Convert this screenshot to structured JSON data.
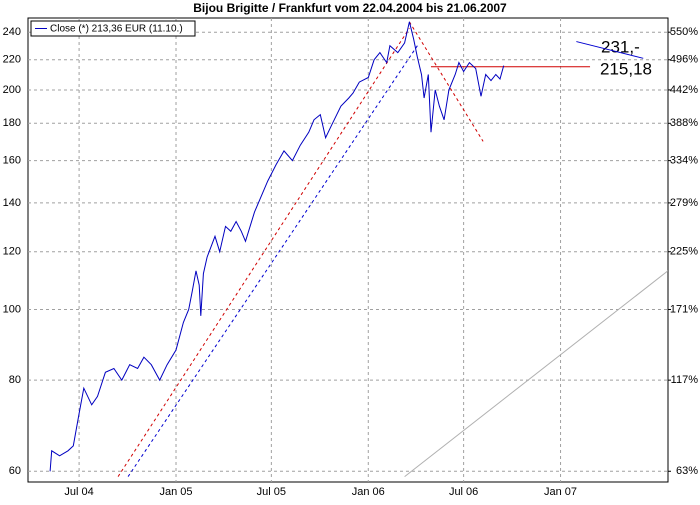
{
  "chart_data": {
    "type": "line",
    "title": "Bijou Brigitte / Frankfurt vom 22.04.2004 bis 21.06.2007",
    "log_scale": true,
    "grid": true,
    "legend": "upper left",
    "xlim": [
      "2004-03-26",
      "2007-07-24"
    ],
    "xticks": [
      {
        "value": "2004-07-01",
        "label": "Jul 04"
      },
      {
        "value": "2005-01-01",
        "label": "Jan 05"
      },
      {
        "value": "2005-07-01",
        "label": "Jul 05"
      },
      {
        "value": "2006-01-01",
        "label": "Jan 06"
      },
      {
        "value": "2006-07-01",
        "label": "Jul 06"
      },
      {
        "value": "2007-01-01",
        "label": "Jan 07"
      }
    ],
    "ylim": [
      58,
      251
    ],
    "yticks": [
      60,
      80,
      100,
      120,
      140,
      160,
      180,
      200,
      220,
      240
    ],
    "y2lim": [
      58,
      251
    ],
    "y2ticks": [
      {
        "value": 60,
        "label": "63%"
      },
      {
        "value": 80,
        "label": "117%"
      },
      {
        "value": 100,
        "label": "171%"
      },
      {
        "value": 120,
        "label": "225%"
      },
      {
        "value": 140,
        "label": "279%"
      },
      {
        "value": 160,
        "label": "334%"
      },
      {
        "value": 180,
        "label": "388%"
      },
      {
        "value": 200,
        "label": "442%"
      },
      {
        "value": 220,
        "label": "496%"
      },
      {
        "value": 240,
        "label": "550%"
      }
    ],
    "x": [
      "2004-05-07",
      "2004-05-10",
      "2004-05-25",
      "2004-06-10",
      "2004-06-20",
      "2004-07-01",
      "2004-07-10",
      "2004-07-25",
      "2004-08-05",
      "2004-08-20",
      "2004-09-05",
      "2004-09-20",
      "2004-10-05",
      "2004-10-20",
      "2004-11-01",
      "2004-11-15",
      "2004-12-01",
      "2004-12-15",
      "2005-01-01",
      "2005-01-15",
      "2005-01-25",
      "2005-02-01",
      "2005-02-08",
      "2005-02-14",
      "2005-02-17",
      "2005-02-22",
      "2005-03-01",
      "2005-03-16",
      "2005-03-25",
      "2005-04-05",
      "2005-04-15",
      "2005-04-25",
      "2005-05-05",
      "2005-05-13",
      "2005-05-30",
      "2005-06-10",
      "2005-06-24",
      "2005-07-10",
      "2005-07-25",
      "2005-08-10",
      "2005-08-25",
      "2005-09-10",
      "2005-09-20",
      "2005-10-02",
      "2005-10-12",
      "2005-10-25",
      "2005-11-10",
      "2005-11-25",
      "2005-12-03",
      "2005-12-15",
      "2006-01-01",
      "2006-01-12",
      "2006-01-23",
      "2006-02-05",
      "2006-02-11",
      "2006-02-26",
      "2006-03-11",
      "2006-03-20",
      "2006-03-28",
      "2006-04-04",
      "2006-04-12",
      "2006-04-17",
      "2006-04-25",
      "2006-04-30",
      "2006-05-08",
      "2006-05-16",
      "2006-05-25",
      "2006-06-03",
      "2006-06-15",
      "2006-06-22",
      "2006-07-01",
      "2006-07-12",
      "2006-07-24",
      "2006-08-03",
      "2006-08-12",
      "2006-08-22",
      "2006-08-31",
      "2006-09-08",
      "2006-09-15"
    ],
    "series": [
      {
        "name": "Close (*) 213,36 EUR (11.10.)",
        "color": "#0000c0",
        "values": [
          60,
          64,
          63,
          64,
          65,
          72,
          78,
          74,
          76,
          82,
          83,
          80,
          84,
          83,
          86,
          84,
          80,
          84,
          88,
          96,
          100,
          106,
          113,
          108,
          98,
          112,
          118,
          126,
          120,
          130,
          128,
          132,
          128,
          124,
          136,
          142,
          150,
          158,
          165,
          160,
          168,
          175,
          182,
          185,
          172,
          180,
          190,
          195,
          198,
          205,
          208,
          220,
          225,
          218,
          230,
          225,
          232,
          248,
          235,
          222,
          210,
          195,
          210,
          175,
          200,
          190,
          182,
          200,
          210,
          218,
          212,
          218,
          214,
          196,
          210,
          206,
          210,
          207,
          216
        ]
      }
    ],
    "lines": [
      {
        "color": "#d00000",
        "dashed": true,
        "x": [
          "2004-09-13",
          "2006-03-20"
        ],
        "values": [
          59,
          243
        ]
      },
      {
        "color": "#0000d0",
        "dashed": true,
        "x": [
          "2004-10-02",
          "2006-04-06"
        ],
        "values": [
          59,
          231
        ]
      },
      {
        "color": "#d00000",
        "dashed": true,
        "x": [
          "2006-03-20",
          "2006-08-07"
        ],
        "values": [
          248,
          170
        ]
      },
      {
        "color": "#d00000",
        "dashed": false,
        "x": [
          "2006-04-30",
          "2007-02-26"
        ],
        "values": [
          215.18,
          215.18
        ]
      },
      {
        "color": "#0000d0",
        "dashed": false,
        "x": [
          "2007-01-31",
          "2007-06-07"
        ],
        "values": [
          233,
          221
        ]
      },
      {
        "color": "#b0b0b0",
        "dashed": false,
        "x": [
          "2006-03-11",
          "2007-07-24"
        ],
        "values": [
          59,
          113
        ]
      }
    ],
    "annotations": [
      "231,-",
      "215,18"
    ]
  }
}
